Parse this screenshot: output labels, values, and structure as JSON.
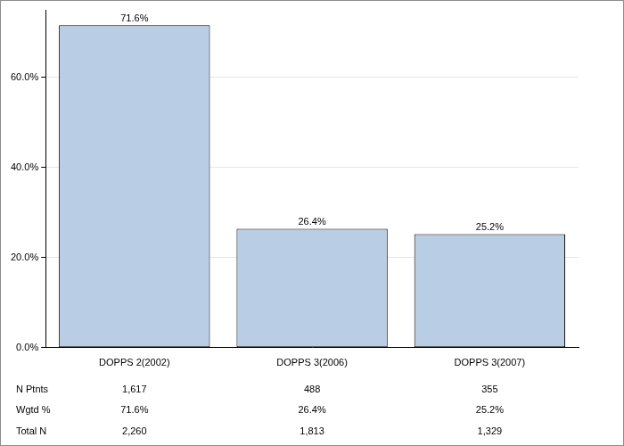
{
  "chart_data": {
    "type": "bar",
    "categories": [
      "DOPPS 2(2002)",
      "DOPPS 3(2006)",
      "DOPPS 3(2007)"
    ],
    "values": [
      71.6,
      26.4,
      25.2
    ],
    "value_labels": [
      "71.6%",
      "26.4%",
      "25.2%"
    ],
    "data_labels": true,
    "color": "#b9cde5",
    "ylim": [
      0,
      75
    ],
    "yticks": [
      {
        "value": 0,
        "label": "0.0%"
      },
      {
        "value": 20,
        "label": "20.0%"
      },
      {
        "value": 40,
        "label": "40.0%"
      },
      {
        "value": 60,
        "label": "60.0%"
      }
    ],
    "grid": true
  },
  "table": {
    "rows": [
      [
        "N Ptnts",
        "1,617",
        "488",
        "355"
      ],
      [
        "Wgtd %",
        "71.6%",
        "26.4%",
        "25.2%"
      ],
      [
        "Total N",
        "2,260",
        "1,813",
        "1,329"
      ]
    ]
  }
}
